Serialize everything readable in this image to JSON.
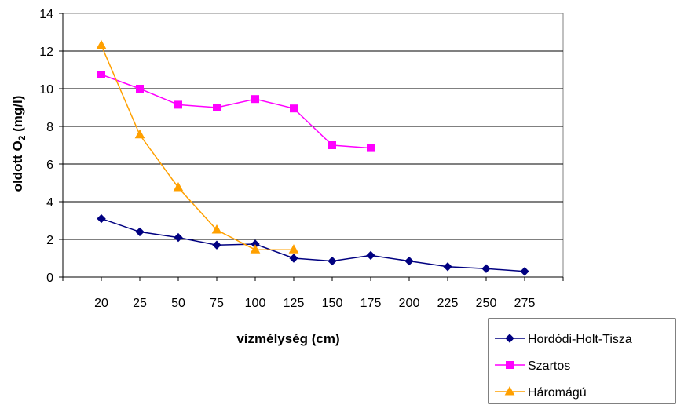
{
  "chart_data": {
    "type": "line",
    "title": "",
    "xlabel": "vízmélység (cm)",
    "ylabel_prefix": "oldott O",
    "ylabel_sub": "2",
    "ylabel_suffix": " (mg/l)",
    "categories": [
      "20",
      "25",
      "50",
      "75",
      "100",
      "125",
      "150",
      "175",
      "200",
      "225",
      "250",
      "275"
    ],
    "ylim": [
      0,
      14
    ],
    "yticks": [
      "0",
      "2",
      "4",
      "6",
      "8",
      "10",
      "12",
      "14"
    ],
    "grid": "horizontal",
    "legend_position": "bottom-right",
    "series": [
      {
        "name": "Hordódi-Holt-Tisza",
        "color": "#000080",
        "marker": "diamond",
        "values": [
          3.1,
          2.4,
          2.1,
          1.7,
          1.75,
          1.0,
          0.85,
          1.15,
          0.85,
          0.55,
          0.45,
          0.3
        ]
      },
      {
        "name": "Szartos",
        "color": "#FF00FF",
        "marker": "square",
        "values": [
          10.75,
          10.0,
          9.15,
          9.0,
          9.45,
          8.95,
          7.0,
          6.85,
          null,
          null,
          null,
          null
        ]
      },
      {
        "name": "Háromágú",
        "color": "#FFA000",
        "marker": "triangle",
        "values": [
          12.3,
          7.55,
          4.75,
          2.5,
          1.45,
          1.45,
          null,
          null,
          null,
          null,
          null,
          null
        ]
      }
    ]
  }
}
